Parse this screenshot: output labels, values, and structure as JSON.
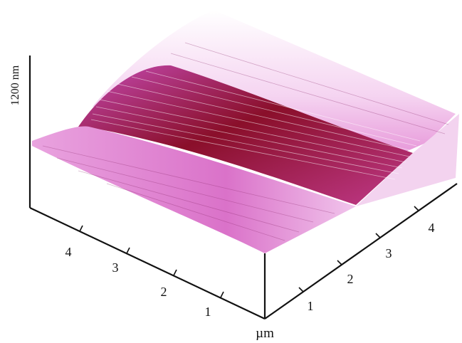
{
  "figure": {
    "z_label": "1200 nm",
    "unit_label": "µm",
    "left_axis_ticks": [
      "4",
      "3",
      "2",
      "1"
    ],
    "right_axis_ticks": [
      "1",
      "2",
      "3",
      "4"
    ],
    "colors": {
      "surface_light": "#f2c8ee",
      "surface_mid": "#e070c8",
      "surface_dark": "#8a0f2a",
      "axis": "#111111",
      "background": "#ffffff"
    }
  }
}
